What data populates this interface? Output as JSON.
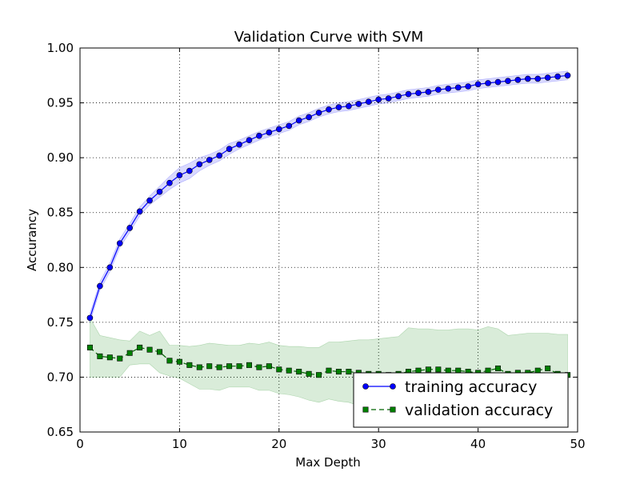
{
  "chart_data": {
    "type": "line",
    "title": "Validation Curve with SVM",
    "xlabel": "Max Depth",
    "ylabel": "Accurancy",
    "xlim": [
      0,
      50
    ],
    "ylim": [
      0.65,
      1.0
    ],
    "x_ticks": [
      "0",
      "10",
      "20",
      "30",
      "40",
      "50"
    ],
    "y_ticks": [
      "0.65",
      "0.70",
      "0.75",
      "0.80",
      "0.85",
      "0.90",
      "0.95",
      "1.00"
    ],
    "grid": true,
    "legend_position": "lower-right",
    "x": [
      1,
      2,
      3,
      4,
      5,
      6,
      7,
      8,
      9,
      10,
      11,
      12,
      13,
      14,
      15,
      16,
      17,
      18,
      19,
      20,
      21,
      22,
      23,
      24,
      25,
      26,
      27,
      28,
      29,
      30,
      31,
      32,
      33,
      34,
      35,
      36,
      37,
      38,
      39,
      40,
      41,
      42,
      43,
      44,
      45,
      46,
      47,
      48,
      49
    ],
    "series": [
      {
        "name": "training accuracy",
        "color": "#0000ff",
        "marker": "circle",
        "line": "solid",
        "values": [
          0.754,
          0.783,
          0.8,
          0.822,
          0.836,
          0.851,
          0.861,
          0.869,
          0.877,
          0.884,
          0.888,
          0.894,
          0.898,
          0.902,
          0.908,
          0.912,
          0.916,
          0.92,
          0.923,
          0.926,
          0.929,
          0.934,
          0.937,
          0.941,
          0.944,
          0.946,
          0.947,
          0.949,
          0.951,
          0.953,
          0.954,
          0.956,
          0.958,
          0.959,
          0.96,
          0.962,
          0.963,
          0.964,
          0.965,
          0.967,
          0.968,
          0.969,
          0.97,
          0.971,
          0.972,
          0.972,
          0.973,
          0.974,
          0.975
        ],
        "band_half_width": [
          0.004,
          0.004,
          0.004,
          0.004,
          0.004,
          0.004,
          0.004,
          0.005,
          0.006,
          0.007,
          0.007,
          0.006,
          0.005,
          0.005,
          0.005,
          0.004,
          0.004,
          0.004,
          0.004,
          0.004,
          0.004,
          0.004,
          0.004,
          0.004,
          0.004,
          0.004,
          0.004,
          0.004,
          0.004,
          0.004,
          0.004,
          0.004,
          0.004,
          0.004,
          0.004,
          0.004,
          0.004,
          0.004,
          0.004,
          0.004,
          0.004,
          0.004,
          0.004,
          0.004,
          0.004,
          0.004,
          0.004,
          0.004,
          0.004
        ]
      },
      {
        "name": "validation accuracy",
        "color": "#006400",
        "marker": "square",
        "line": "dashed",
        "values": [
          0.727,
          0.719,
          0.718,
          0.717,
          0.722,
          0.727,
          0.725,
          0.723,
          0.715,
          0.714,
          0.711,
          0.709,
          0.71,
          0.709,
          0.71,
          0.71,
          0.711,
          0.709,
          0.71,
          0.707,
          0.706,
          0.705,
          0.703,
          0.702,
          0.706,
          0.705,
          0.705,
          0.704,
          0.703,
          0.703,
          0.702,
          0.703,
          0.705,
          0.706,
          0.707,
          0.707,
          0.706,
          0.706,
          0.705,
          0.704,
          0.706,
          0.708,
          0.703,
          0.704,
          0.704,
          0.706,
          0.708,
          0.703,
          0.702
        ],
        "band_half_width": [
          0.027,
          0.019,
          0.018,
          0.017,
          0.011,
          0.015,
          0.013,
          0.019,
          0.014,
          0.015,
          0.017,
          0.02,
          0.021,
          0.021,
          0.019,
          0.019,
          0.02,
          0.021,
          0.022,
          0.022,
          0.022,
          0.023,
          0.024,
          0.025,
          0.026,
          0.027,
          0.028,
          0.03,
          0.031,
          0.032,
          0.034,
          0.034,
          0.04,
          0.038,
          0.037,
          0.036,
          0.037,
          0.038,
          0.039,
          0.039,
          0.04,
          0.036,
          0.035,
          0.035,
          0.036,
          0.034,
          0.032,
          0.036,
          0.037
        ]
      }
    ]
  }
}
